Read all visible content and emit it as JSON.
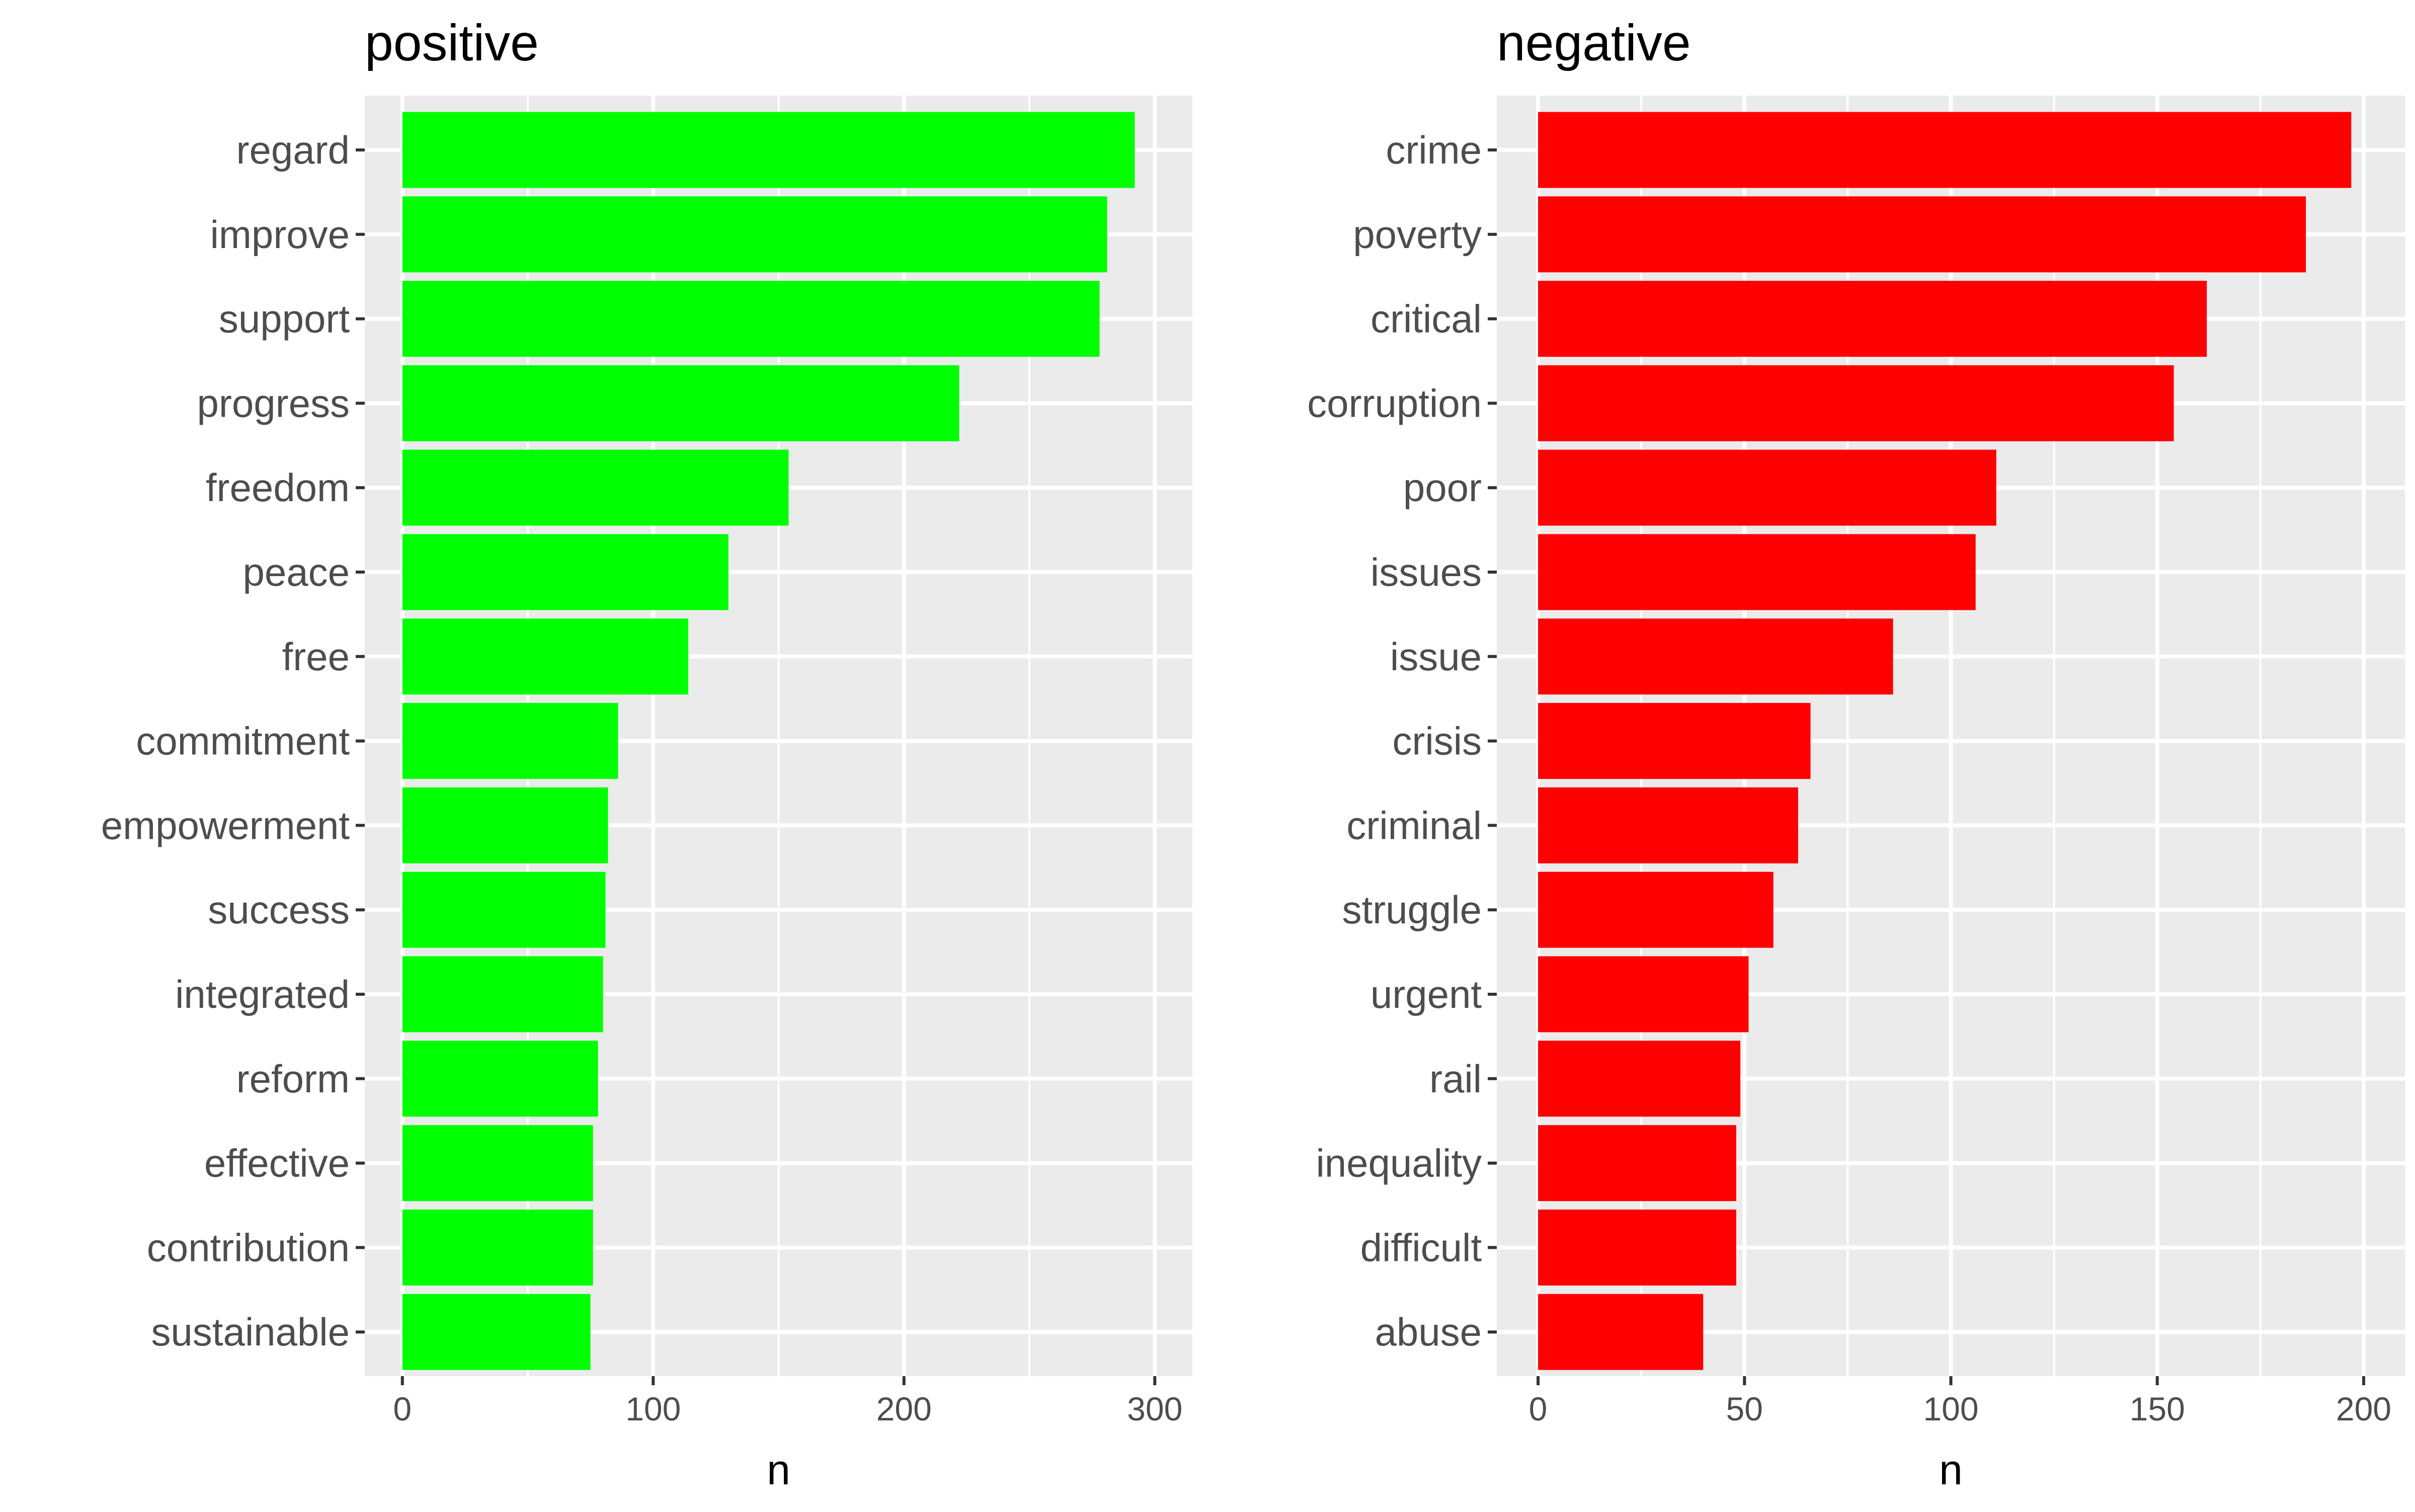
{
  "chart_data": [
    {
      "type": "bar",
      "orientation": "horizontal",
      "title": "positive",
      "xlabel": "n",
      "ylabel": "",
      "color": "#00ff00",
      "xlim": [
        0,
        300
      ],
      "xticks": [
        0,
        100,
        200,
        300
      ],
      "grid": true,
      "categories": [
        "regard",
        "improve",
        "support",
        "progress",
        "freedom",
        "peace",
        "free",
        "commitment",
        "empowerment",
        "success",
        "integrated",
        "reform",
        "effective",
        "contribution",
        "sustainable"
      ],
      "values": [
        292,
        281,
        278,
        222,
        154,
        130,
        114,
        86,
        82,
        81,
        80,
        78,
        76,
        76,
        75
      ]
    },
    {
      "type": "bar",
      "orientation": "horizontal",
      "title": "negative",
      "xlabel": "n",
      "ylabel": "",
      "color": "#ff0000",
      "xlim": [
        0,
        200
      ],
      "xticks": [
        0,
        50,
        100,
        150,
        200
      ],
      "grid": true,
      "categories": [
        "crime",
        "poverty",
        "critical",
        "corruption",
        "poor",
        "issues",
        "issue",
        "crisis",
        "criminal",
        "struggle",
        "urgent",
        "rail",
        "inequality",
        "difficult",
        "abuse"
      ],
      "values": [
        197,
        186,
        162,
        154,
        111,
        106,
        86,
        66,
        63,
        57,
        51,
        49,
        48,
        48,
        40
      ]
    }
  ]
}
